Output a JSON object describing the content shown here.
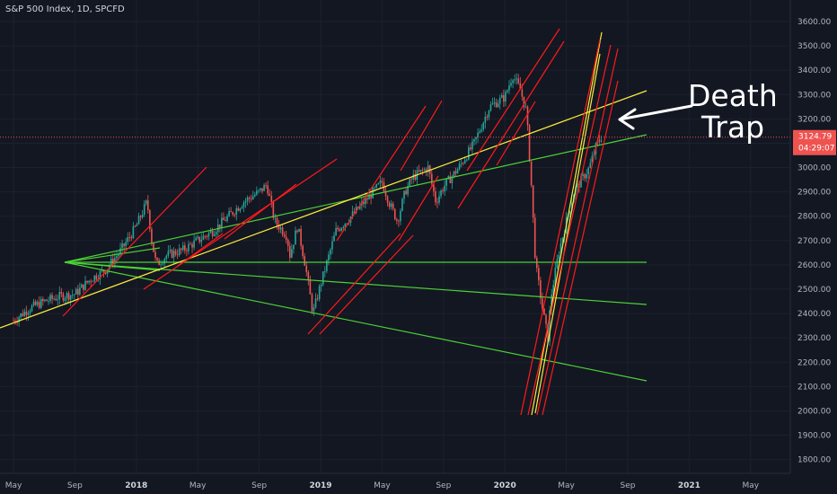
{
  "chart_data": {
    "type": "candlestick",
    "title": "S&P 500 Index, 1D, SPCFD",
    "y_axis": {
      "ticks": [
        3600,
        3500,
        3400,
        3300,
        3200,
        3100,
        3000,
        2900,
        2800,
        2700,
        2600,
        2500,
        2400,
        2300,
        2200,
        2100,
        2000,
        1900,
        1800
      ],
      "range": [
        1750,
        3620
      ]
    },
    "x_axis": {
      "ticks": [
        {
          "label": "May",
          "bold": false,
          "t": 0
        },
        {
          "label": "Sep",
          "bold": false,
          "t": 4
        },
        {
          "label": "2018",
          "bold": true,
          "t": 8
        },
        {
          "label": "May",
          "bold": false,
          "t": 12
        },
        {
          "label": "Sep",
          "bold": false,
          "t": 16
        },
        {
          "label": "2019",
          "bold": true,
          "t": 20
        },
        {
          "label": "May",
          "bold": false,
          "t": 24
        },
        {
          "label": "Sep",
          "bold": false,
          "t": 28
        },
        {
          "label": "2020",
          "bold": true,
          "t": 32
        },
        {
          "label": "May",
          "bold": false,
          "t": 36
        },
        {
          "label": "Sep",
          "bold": false,
          "t": 40
        },
        {
          "label": "2021",
          "bold": true,
          "t": 44
        },
        {
          "label": "May",
          "bold": false,
          "t": 48
        }
      ]
    },
    "price_path": [
      [
        0,
        2370
      ],
      [
        1,
        2420
      ],
      [
        2,
        2450
      ],
      [
        3,
        2470
      ],
      [
        4,
        2480
      ],
      [
        5,
        2540
      ],
      [
        6,
        2580
      ],
      [
        7,
        2660
      ],
      [
        8,
        2760
      ],
      [
        8.7,
        2860
      ],
      [
        9,
        2700
      ],
      [
        9.3,
        2600
      ],
      [
        10,
        2640
      ],
      [
        11,
        2660
      ],
      [
        12,
        2700
      ],
      [
        13,
        2740
      ],
      [
        14,
        2800
      ],
      [
        15,
        2860
      ],
      [
        16,
        2900
      ],
      [
        16.5,
        2930
      ],
      [
        17,
        2780
      ],
      [
        17.8,
        2720
      ],
      [
        18,
        2640
      ],
      [
        18.5,
        2760
      ],
      [
        19,
        2600
      ],
      [
        19.5,
        2400
      ],
      [
        20,
        2520
      ],
      [
        21,
        2740
      ],
      [
        22,
        2800
      ],
      [
        23,
        2870
      ],
      [
        24,
        2940
      ],
      [
        24.5,
        2850
      ],
      [
        25,
        2780
      ],
      [
        25.5,
        2900
      ],
      [
        26,
        2960
      ],
      [
        27,
        3000
      ],
      [
        27.5,
        2860
      ],
      [
        28,
        2920
      ],
      [
        29,
        3000
      ],
      [
        30,
        3100
      ],
      [
        31,
        3250
      ],
      [
        32,
        3290
      ],
      [
        32.5,
        3380
      ],
      [
        33,
        3320
      ],
      [
        33.4,
        3230
      ],
      [
        33.7,
        2950
      ],
      [
        34,
        2600
      ],
      [
        34.5,
        2400
      ],
      [
        34.8,
        2300
      ],
      [
        35,
        2470
      ],
      [
        35.5,
        2650
      ],
      [
        36,
        2780
      ],
      [
        36.5,
        2900
      ],
      [
        37,
        2950
      ],
      [
        37.5,
        3000
      ],
      [
        38,
        3100
      ],
      [
        38.3,
        3125
      ]
    ],
    "last_price": "3124.79",
    "countdown": "04:29:07",
    "annotation": [
      "Death",
      "Trap"
    ],
    "colors": {
      "up": "#26a69a",
      "down": "#ef5350",
      "yellow": "#ffeb3b",
      "green": "#4cd137",
      "red": "#ff1a1a",
      "price_tag": "#ef5350"
    }
  }
}
